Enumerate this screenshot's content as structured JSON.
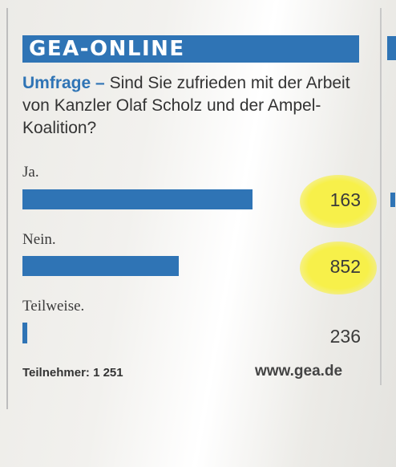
{
  "header": {
    "brand": "GEA-ONLINE"
  },
  "question": {
    "lead": "Umfrage",
    "dash": " – ",
    "text": "Sind Sie zufrieden mit der Arbeit von Kanzler Olaf Scholz und der Ampel-Koalition?"
  },
  "chart_data": {
    "type": "bar",
    "orientation": "horizontal",
    "categories": [
      "Ja.",
      "Nein.",
      "Teilweise."
    ],
    "values": [
      163,
      852,
      236
    ],
    "value_labels": [
      "163",
      "852",
      "236"
    ],
    "bar_fraction": [
      1.0,
      0.68,
      0.02
    ],
    "highlighted": [
      true,
      true,
      false
    ],
    "colors": {
      "bar": "#2f74b5",
      "highlight": "#f7f04a"
    }
  },
  "footer": {
    "participants": "Teilnehmer: 1 251",
    "site": "www.gea.de"
  }
}
